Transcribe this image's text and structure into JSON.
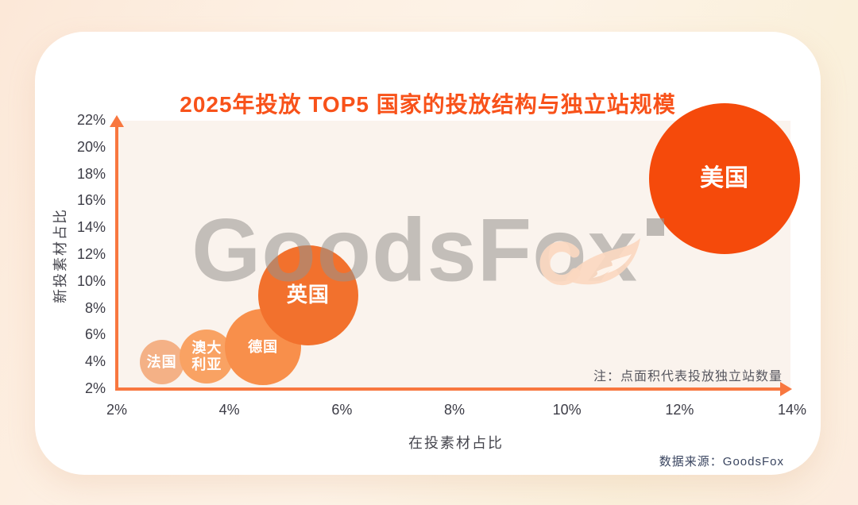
{
  "page": {
    "source_label": "数据来源：GoodsFox"
  },
  "chart_data": {
    "type": "scatter",
    "subtype": "bubble",
    "title": "2025年投放 TOP5 国家的投放结构与独立站规模",
    "xlabel": "在投素材占比",
    "ylabel": "新投素材占比",
    "xlim": [
      2,
      14
    ],
    "ylim": [
      2,
      22
    ],
    "grid": false,
    "legend": false,
    "note": "注：点面积代表投放独立站数量",
    "watermark": "GoodsFox",
    "x_ticks": [
      {
        "value": 2,
        "label": "2%"
      },
      {
        "value": 4,
        "label": "4%"
      },
      {
        "value": 6,
        "label": "6%"
      },
      {
        "value": 8,
        "label": "8%"
      },
      {
        "value": 10,
        "label": "10%"
      },
      {
        "value": 12,
        "label": "12%"
      },
      {
        "value": 14,
        "label": "14%"
      }
    ],
    "y_ticks": [
      {
        "value": 22,
        "label": "22%"
      },
      {
        "value": 20,
        "label": "20%"
      },
      {
        "value": 18,
        "label": "18%"
      },
      {
        "value": 16,
        "label": "16%"
      },
      {
        "value": 14,
        "label": "14%"
      },
      {
        "value": 12,
        "label": "12%"
      },
      {
        "value": 10,
        "label": "10%"
      },
      {
        "value": 8,
        "label": "8%"
      },
      {
        "value": 6,
        "label": "6%"
      },
      {
        "value": 4,
        "label": "4%"
      },
      {
        "value": 2,
        "label": "2%"
      }
    ],
    "series": [
      {
        "key": "france",
        "name": "法国",
        "x": 2.8,
        "y": 4.0,
        "radius_px": 28,
        "color": "#F4B186",
        "label_lines": [
          "法国"
        ]
      },
      {
        "key": "australia",
        "name": "澳大利亚",
        "x": 3.6,
        "y": 4.45,
        "radius_px": 34,
        "color": "#F9A263",
        "label_lines": [
          "澳大",
          "利亚"
        ]
      },
      {
        "key": "germany",
        "name": "德国",
        "x": 4.6,
        "y": 5.15,
        "radius_px": 48,
        "color": "#F88F4B",
        "label_lines": [
          "德国"
        ]
      },
      {
        "key": "uk",
        "name": "英国",
        "x": 5.4,
        "y": 9.0,
        "radius_px": 63,
        "color": "#F2712D",
        "label_lines": [
          "英国"
        ]
      },
      {
        "key": "usa",
        "name": "美国",
        "x": 12.8,
        "y": 17.7,
        "radius_px": 95,
        "color": "#F54A0B",
        "label_lines": [
          "美国"
        ]
      }
    ],
    "colors": {
      "title": "#F8521A",
      "axis": "#F8773F",
      "tick": "#3C3C46",
      "note": "#57575F",
      "source": "#3A4560",
      "plot_bg": "#FAF3ED"
    }
  }
}
